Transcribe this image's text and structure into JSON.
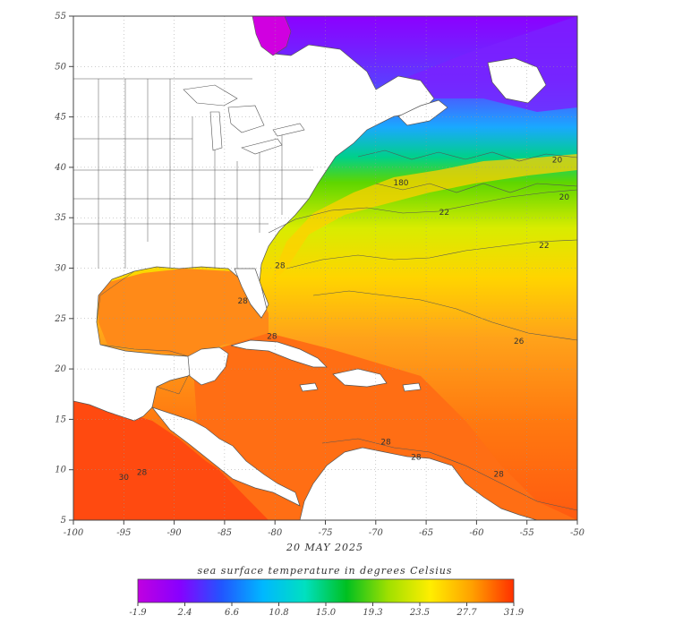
{
  "map": {
    "date": "20 MAY 2025",
    "lon_ticks": [
      "-100",
      "-95",
      "-90",
      "-85",
      "-80",
      "-75",
      "-70",
      "-65",
      "-60",
      "-55",
      "-50"
    ],
    "lat_ticks": [
      "5",
      "10",
      "15",
      "20",
      "25",
      "30",
      "35",
      "40",
      "45",
      "50",
      "55"
    ],
    "lon_range": [
      -100,
      -50
    ],
    "lat_range": [
      5,
      55
    ],
    "contour_labels": [
      {
        "text": "28",
        "lon": -83.2,
        "lat": 26.5
      },
      {
        "text": "22",
        "lon": -63.2,
        "lat": 35.3
      },
      {
        "text": "20",
        "lon": -51.3,
        "lat": 36.8
      },
      {
        "text": "22",
        "lon": -53.3,
        "lat": 32.0
      },
      {
        "text": "26",
        "lon": -55.8,
        "lat": 22.5
      },
      {
        "text": "28",
        "lon": -79.5,
        "lat": 30.0
      },
      {
        "text": "28",
        "lon": -80.3,
        "lat": 23.0
      },
      {
        "text": "28",
        "lon": -93.2,
        "lat": 9.5
      },
      {
        "text": "30",
        "lon": -95.0,
        "lat": 9.0
      },
      {
        "text": "28",
        "lon": -69.0,
        "lat": 12.5
      },
      {
        "text": "28",
        "lon": -66.0,
        "lat": 11.0
      },
      {
        "text": "28",
        "lon": -57.8,
        "lat": 9.3
      },
      {
        "text": "20",
        "lon": -52.0,
        "lat": 40.5
      },
      {
        "text": "180",
        "lon": -67.5,
        "lat": 38.2
      }
    ]
  },
  "colorbar": {
    "title": "sea surface temperature in degrees Celsius",
    "tick_labels": [
      "-1.9",
      "2.4",
      "6.6",
      "10.8",
      "15.0",
      "19.3",
      "23.5",
      "27.7",
      "31.9"
    ],
    "gradient_colors": [
      "#c000e0",
      "#8800ff",
      "#2255ff",
      "#00b8ff",
      "#00e0c0",
      "#00c020",
      "#a0e000",
      "#ffee00",
      "#ffa000",
      "#ff3000"
    ]
  }
}
